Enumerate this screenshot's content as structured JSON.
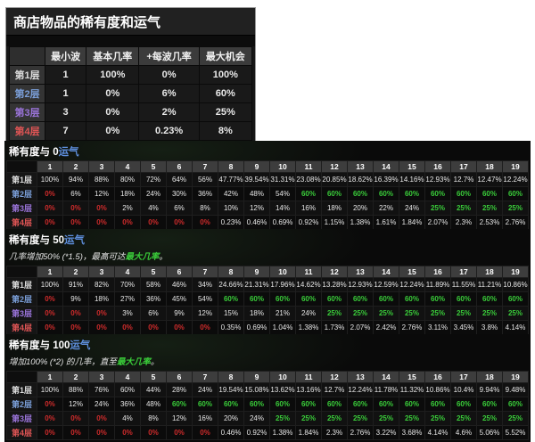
{
  "colors": {
    "tier1": "#dcdcdc",
    "tier2": "#7b9fd9",
    "tier3": "#9a74d9",
    "tier4": "#e05555",
    "red_zero": "#cf2b2b",
    "green_max": "#3acd3a",
    "link_blue": "#5e8fdd"
  },
  "summary": {
    "title": "商店物品的稀有度和运气",
    "col_headers": [
      "最小波",
      "基本几率",
      "+每波几率",
      "最大机会"
    ],
    "rows": [
      {
        "label": "第1层",
        "tier": "t1",
        "values": [
          "1",
          "100%",
          "0%",
          "100%"
        ]
      },
      {
        "label": "第2层",
        "tier": "t2",
        "values": [
          "1",
          "0%",
          "6%",
          "60%"
        ]
      },
      {
        "label": "第3层",
        "tier": "t3",
        "values": [
          "3",
          "0%",
          "2%",
          "25%"
        ]
      },
      {
        "label": "第4层",
        "tier": "t4",
        "values": [
          "7",
          "0%",
          "0.23%",
          "8%"
        ]
      }
    ]
  },
  "waves": [
    "1",
    "2",
    "3",
    "4",
    "5",
    "6",
    "7",
    "8",
    "9",
    "10",
    "11",
    "12",
    "13",
    "14",
    "15",
    "16",
    "17",
    "18",
    "19"
  ],
  "luck_tables": [
    {
      "title_text": "稀有度与 0",
      "title_link": "运气",
      "subtitle": null,
      "rows": [
        {
          "label": "第1层",
          "tier": "t1",
          "values": [
            "100%",
            "94%",
            "88%",
            "80%",
            "72%",
            "64%",
            "56%",
            "47.77%",
            "39.54%",
            "31.31%",
            "23.08%",
            "20.85%",
            "18.62%",
            "16.39%",
            "14.16%",
            "12.93%",
            "12.7%",
            "12.47%",
            "12.24%"
          ],
          "colors": "wwwwwwwwwwwwwwwwwww"
        },
        {
          "label": "第2层",
          "tier": "t2",
          "values": [
            "0%",
            "6%",
            "12%",
            "18%",
            "24%",
            "30%",
            "36%",
            "42%",
            "48%",
            "54%",
            "60%",
            "60%",
            "60%",
            "60%",
            "60%",
            "60%",
            "60%",
            "60%",
            "60%"
          ],
          "colors": "rwwwwwwwwwggggggggg"
        },
        {
          "label": "第3层",
          "tier": "t3",
          "values": [
            "0%",
            "0%",
            "0%",
            "2%",
            "4%",
            "6%",
            "8%",
            "10%",
            "12%",
            "14%",
            "16%",
            "18%",
            "20%",
            "22%",
            "24%",
            "25%",
            "25%",
            "25%",
            "25%"
          ],
          "colors": "rrrwwwwwwwwwwwwgggg"
        },
        {
          "label": "第4层",
          "tier": "t4",
          "values": [
            "0%",
            "0%",
            "0%",
            "0%",
            "0%",
            "0%",
            "0%",
            "0.23%",
            "0.46%",
            "0.69%",
            "0.92%",
            "1.15%",
            "1.38%",
            "1.61%",
            "1.84%",
            "2.07%",
            "2.3%",
            "2.53%",
            "2.76%"
          ],
          "colors": "rrrrrrrwwwwwwwwwwww"
        }
      ]
    },
    {
      "title_text": "稀有度与 50",
      "title_link": "运气",
      "subtitle": {
        "pre": "几率增加50% (*1.5)，最高可达",
        "link": "最大几率",
        "post": "。"
      },
      "rows": [
        {
          "label": "第1层",
          "tier": "t1",
          "values": [
            "100%",
            "91%",
            "82%",
            "70%",
            "58%",
            "46%",
            "34%",
            "24.66%",
            "21.31%",
            "17.96%",
            "14.62%",
            "13.28%",
            "12.93%",
            "12.59%",
            "12.24%",
            "11.89%",
            "11.55%",
            "11.21%",
            "10.86%"
          ],
          "colors": "wwwwwwwwwwwwwwwwwww"
        },
        {
          "label": "第2层",
          "tier": "t2",
          "values": [
            "0%",
            "9%",
            "18%",
            "27%",
            "36%",
            "45%",
            "54%",
            "60%",
            "60%",
            "60%",
            "60%",
            "60%",
            "60%",
            "60%",
            "60%",
            "60%",
            "60%",
            "60%",
            "60%"
          ],
          "colors": "rwwwwwwgggggggggggg"
        },
        {
          "label": "第3层",
          "tier": "t3",
          "values": [
            "0%",
            "0%",
            "0%",
            "3%",
            "6%",
            "9%",
            "12%",
            "15%",
            "18%",
            "21%",
            "24%",
            "25%",
            "25%",
            "25%",
            "25%",
            "25%",
            "25%",
            "25%",
            "25%"
          ],
          "colors": "rrrwwwwwwwwgggggggg"
        },
        {
          "label": "第4层",
          "tier": "t4",
          "values": [
            "0%",
            "0%",
            "0%",
            "0%",
            "0%",
            "0%",
            "0%",
            "0.35%",
            "0.69%",
            "1.04%",
            "1.38%",
            "1.73%",
            "2.07%",
            "2.42%",
            "2.76%",
            "3.11%",
            "3.45%",
            "3.8%",
            "4.14%"
          ],
          "colors": "rrrrrrrwwwwwwwwwwww"
        }
      ]
    },
    {
      "title_text": "稀有度与 100",
      "title_link": "运气",
      "subtitle": {
        "pre": "增加100% (*2) 的几率，直至",
        "link": "最大几率",
        "post": "。"
      },
      "rows": [
        {
          "label": "第1层",
          "tier": "t1",
          "values": [
            "100%",
            "88%",
            "76%",
            "60%",
            "44%",
            "28%",
            "24%",
            "19.54%",
            "15.08%",
            "13.62%",
            "13.16%",
            "12.7%",
            "12.24%",
            "11.78%",
            "11.32%",
            "10.86%",
            "10.4%",
            "9.94%",
            "9.48%"
          ],
          "colors": "wwwwwwwwwwwwwwwwwww"
        },
        {
          "label": "第2层",
          "tier": "t2",
          "values": [
            "0%",
            "12%",
            "24%",
            "36%",
            "48%",
            "60%",
            "60%",
            "60%",
            "60%",
            "60%",
            "60%",
            "60%",
            "60%",
            "60%",
            "60%",
            "60%",
            "60%",
            "60%",
            "60%"
          ],
          "colors": "rwwwwgggggggggggggg"
        },
        {
          "label": "第3层",
          "tier": "t3",
          "values": [
            "0%",
            "0%",
            "0%",
            "4%",
            "8%",
            "12%",
            "16%",
            "20%",
            "24%",
            "25%",
            "25%",
            "25%",
            "25%",
            "25%",
            "25%",
            "25%",
            "25%",
            "25%",
            "25%"
          ],
          "colors": "rrrwwwwwwgggggggggg"
        },
        {
          "label": "第4层",
          "tier": "t4",
          "values": [
            "0%",
            "0%",
            "0%",
            "0%",
            "0%",
            "0%",
            "0%",
            "0.46%",
            "0.92%",
            "1.38%",
            "1.84%",
            "2.3%",
            "2.76%",
            "3.22%",
            "3.68%",
            "4.14%",
            "4.6%",
            "5.06%",
            "5.52%"
          ],
          "colors": "rrrrrrrwwwwwwwwwwww"
        }
      ]
    }
  ]
}
